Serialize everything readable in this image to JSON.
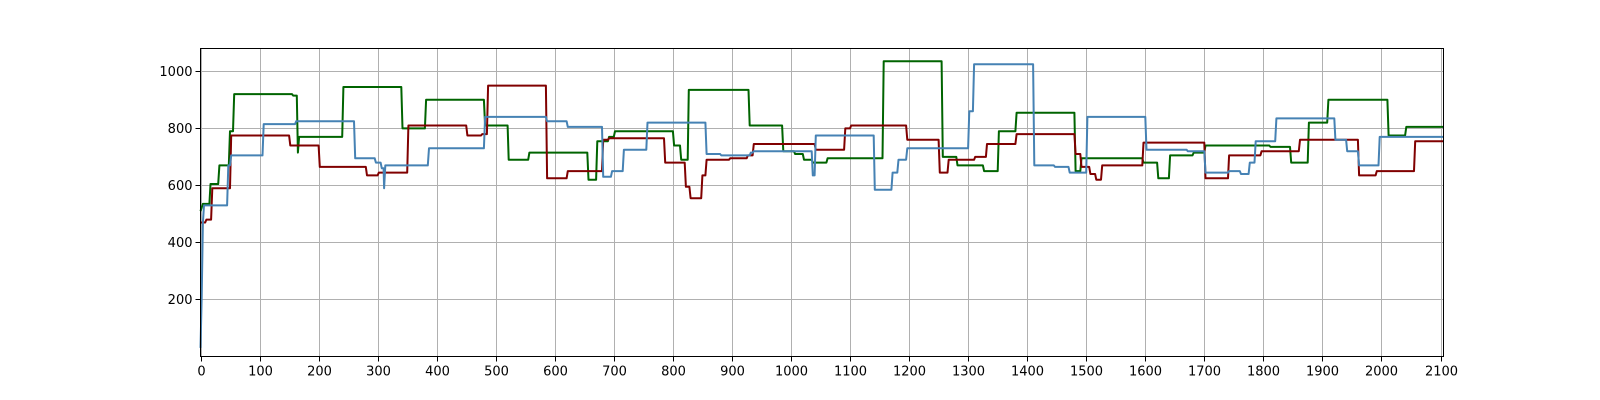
{
  "chart_data": {
    "type": "line",
    "title": "",
    "xlabel": "",
    "ylabel": "",
    "xlim": [
      0,
      2105
    ],
    "ylim": [
      0,
      1080
    ],
    "grid": true,
    "x_ticks": [
      0,
      100,
      200,
      300,
      400,
      500,
      600,
      700,
      800,
      900,
      1000,
      1100,
      1200,
      1300,
      1400,
      1500,
      1600,
      1700,
      1800,
      1900,
      2000,
      2100
    ],
    "y_ticks": [
      200,
      400,
      600,
      800,
      1000
    ],
    "series": [
      {
        "color": "#006400",
        "step": true,
        "points": [
          [
            0,
            510
          ],
          [
            4,
            535
          ],
          [
            15,
            535
          ],
          [
            17,
            605
          ],
          [
            30,
            605
          ],
          [
            32,
            670
          ],
          [
            48,
            670
          ],
          [
            50,
            790
          ],
          [
            55,
            790
          ],
          [
            57,
            920
          ],
          [
            155,
            920
          ],
          [
            157,
            915
          ],
          [
            163,
            915
          ],
          [
            165,
            715
          ],
          [
            167,
            770
          ],
          [
            240,
            770
          ],
          [
            242,
            945
          ],
          [
            340,
            945
          ],
          [
            342,
            800
          ],
          [
            380,
            800
          ],
          [
            382,
            900
          ],
          [
            480,
            900
          ],
          [
            482,
            810
          ],
          [
            520,
            810
          ],
          [
            522,
            690
          ],
          [
            555,
            690
          ],
          [
            557,
            715
          ],
          [
            655,
            715
          ],
          [
            657,
            620
          ],
          [
            670,
            620
          ],
          [
            672,
            755
          ],
          [
            690,
            755
          ],
          [
            692,
            770
          ],
          [
            700,
            770
          ],
          [
            702,
            790
          ],
          [
            800,
            790
          ],
          [
            802,
            740
          ],
          [
            812,
            740
          ],
          [
            814,
            690
          ],
          [
            825,
            690
          ],
          [
            827,
            935
          ],
          [
            928,
            935
          ],
          [
            930,
            810
          ],
          [
            985,
            810
          ],
          [
            987,
            720
          ],
          [
            1005,
            720
          ],
          [
            1007,
            710
          ],
          [
            1020,
            710
          ],
          [
            1022,
            690
          ],
          [
            1035,
            690
          ],
          [
            1037,
            680
          ],
          [
            1060,
            680
          ],
          [
            1062,
            695
          ],
          [
            1155,
            695
          ],
          [
            1157,
            1035
          ],
          [
            1255,
            1035
          ],
          [
            1257,
            700
          ],
          [
            1280,
            700
          ],
          [
            1282,
            670
          ],
          [
            1325,
            670
          ],
          [
            1327,
            650
          ],
          [
            1350,
            650
          ],
          [
            1352,
            790
          ],
          [
            1380,
            790
          ],
          [
            1382,
            855
          ],
          [
            1480,
            855
          ],
          [
            1482,
            650
          ],
          [
            1490,
            650
          ],
          [
            1492,
            695
          ],
          [
            1595,
            695
          ],
          [
            1597,
            680
          ],
          [
            1620,
            680
          ],
          [
            1622,
            625
          ],
          [
            1640,
            625
          ],
          [
            1642,
            705
          ],
          [
            1680,
            705
          ],
          [
            1682,
            715
          ],
          [
            1700,
            715
          ],
          [
            1702,
            740
          ],
          [
            1810,
            740
          ],
          [
            1812,
            735
          ],
          [
            1845,
            735
          ],
          [
            1847,
            680
          ],
          [
            1875,
            680
          ],
          [
            1877,
            820
          ],
          [
            1908,
            820
          ],
          [
            1910,
            900
          ],
          [
            2010,
            900
          ],
          [
            2012,
            775
          ],
          [
            2040,
            775
          ],
          [
            2042,
            805
          ],
          [
            2105,
            805
          ]
        ]
      },
      {
        "color": "#800000",
        "step": true,
        "points": [
          [
            0,
            470
          ],
          [
            8,
            470
          ],
          [
            10,
            480
          ],
          [
            18,
            480
          ],
          [
            20,
            590
          ],
          [
            50,
            590
          ],
          [
            52,
            775
          ],
          [
            105,
            775
          ],
          [
            107,
            775
          ],
          [
            150,
            775
          ],
          [
            152,
            740
          ],
          [
            200,
            740
          ],
          [
            202,
            665
          ],
          [
            280,
            665
          ],
          [
            282,
            635
          ],
          [
            300,
            635
          ],
          [
            302,
            645
          ],
          [
            350,
            645
          ],
          [
            352,
            810
          ],
          [
            450,
            810
          ],
          [
            452,
            775
          ],
          [
            475,
            775
          ],
          [
            477,
            780
          ],
          [
            485,
            780
          ],
          [
            487,
            950
          ],
          [
            585,
            950
          ],
          [
            587,
            625
          ],
          [
            620,
            625
          ],
          [
            622,
            650
          ],
          [
            680,
            650
          ],
          [
            682,
            760
          ],
          [
            690,
            760
          ],
          [
            692,
            765
          ],
          [
            785,
            765
          ],
          [
            787,
            680
          ],
          [
            820,
            680
          ],
          [
            822,
            595
          ],
          [
            828,
            595
          ],
          [
            830,
            555
          ],
          [
            848,
            555
          ],
          [
            850,
            635
          ],
          [
            855,
            635
          ],
          [
            857,
            690
          ],
          [
            895,
            690
          ],
          [
            897,
            695
          ],
          [
            925,
            695
          ],
          [
            927,
            705
          ],
          [
            935,
            705
          ],
          [
            937,
            745
          ],
          [
            1040,
            745
          ],
          [
            1042,
            725
          ],
          [
            1090,
            725
          ],
          [
            1092,
            800
          ],
          [
            1100,
            800
          ],
          [
            1102,
            810
          ],
          [
            1195,
            810
          ],
          [
            1197,
            760
          ],
          [
            1250,
            760
          ],
          [
            1252,
            645
          ],
          [
            1265,
            645
          ],
          [
            1267,
            690
          ],
          [
            1280,
            690
          ],
          [
            1282,
            690
          ],
          [
            1310,
            690
          ],
          [
            1312,
            700
          ],
          [
            1330,
            700
          ],
          [
            1332,
            745
          ],
          [
            1380,
            745
          ],
          [
            1382,
            780
          ],
          [
            1480,
            780
          ],
          [
            1482,
            710
          ],
          [
            1490,
            710
          ],
          [
            1492,
            665
          ],
          [
            1505,
            665
          ],
          [
            1507,
            640
          ],
          [
            1515,
            640
          ],
          [
            1517,
            620
          ],
          [
            1525,
            620
          ],
          [
            1527,
            670
          ],
          [
            1595,
            670
          ],
          [
            1597,
            750
          ],
          [
            1700,
            750
          ],
          [
            1702,
            625
          ],
          [
            1740,
            625
          ],
          [
            1742,
            705
          ],
          [
            1795,
            705
          ],
          [
            1797,
            720
          ],
          [
            1860,
            720
          ],
          [
            1862,
            760
          ],
          [
            1960,
            760
          ],
          [
            1962,
            635
          ],
          [
            1990,
            635
          ],
          [
            1992,
            650
          ],
          [
            2055,
            650
          ],
          [
            2057,
            755
          ],
          [
            2105,
            755
          ]
        ]
      },
      {
        "color": "#4682b4",
        "step": true,
        "points": [
          [
            0,
            30
          ],
          [
            2,
            210
          ],
          [
            4,
            470
          ],
          [
            6,
            530
          ],
          [
            45,
            530
          ],
          [
            47,
            670
          ],
          [
            50,
            670
          ],
          [
            52,
            705
          ],
          [
            105,
            705
          ],
          [
            107,
            815
          ],
          [
            160,
            815
          ],
          [
            162,
            825
          ],
          [
            260,
            825
          ],
          [
            262,
            695
          ],
          [
            295,
            695
          ],
          [
            297,
            680
          ],
          [
            305,
            680
          ],
          [
            307,
            660
          ],
          [
            310,
            660
          ],
          [
            311,
            590
          ],
          [
            313,
            670
          ],
          [
            385,
            670
          ],
          [
            387,
            730
          ],
          [
            480,
            730
          ],
          [
            482,
            840
          ],
          [
            585,
            840
          ],
          [
            587,
            825
          ],
          [
            620,
            825
          ],
          [
            622,
            805
          ],
          [
            680,
            805
          ],
          [
            682,
            630
          ],
          [
            695,
            630
          ],
          [
            697,
            650
          ],
          [
            715,
            650
          ],
          [
            717,
            725
          ],
          [
            755,
            725
          ],
          [
            757,
            820
          ],
          [
            855,
            820
          ],
          [
            857,
            710
          ],
          [
            880,
            710
          ],
          [
            882,
            705
          ],
          [
            930,
            705
          ],
          [
            932,
            715
          ],
          [
            935,
            715
          ],
          [
            937,
            720
          ],
          [
            1035,
            720
          ],
          [
            1037,
            635
          ],
          [
            1040,
            635
          ],
          [
            1042,
            775
          ],
          [
            1140,
            775
          ],
          [
            1142,
            585
          ],
          [
            1170,
            585
          ],
          [
            1172,
            645
          ],
          [
            1180,
            645
          ],
          [
            1182,
            690
          ],
          [
            1195,
            690
          ],
          [
            1197,
            730
          ],
          [
            1300,
            730
          ],
          [
            1302,
            860
          ],
          [
            1308,
            860
          ],
          [
            1310,
            1025
          ],
          [
            1410,
            1025
          ],
          [
            1412,
            670
          ],
          [
            1445,
            670
          ],
          [
            1447,
            665
          ],
          [
            1470,
            665
          ],
          [
            1472,
            645
          ],
          [
            1500,
            645
          ],
          [
            1502,
            840
          ],
          [
            1600,
            840
          ],
          [
            1602,
            725
          ],
          [
            1670,
            725
          ],
          [
            1672,
            720
          ],
          [
            1700,
            720
          ],
          [
            1702,
            645
          ],
          [
            1740,
            645
          ],
          [
            1742,
            650
          ],
          [
            1760,
            650
          ],
          [
            1762,
            640
          ],
          [
            1775,
            640
          ],
          [
            1777,
            680
          ],
          [
            1785,
            680
          ],
          [
            1787,
            755
          ],
          [
            1820,
            755
          ],
          [
            1822,
            835
          ],
          [
            1920,
            835
          ],
          [
            1922,
            760
          ],
          [
            1940,
            760
          ],
          [
            1942,
            720
          ],
          [
            1960,
            720
          ],
          [
            1962,
            670
          ],
          [
            1995,
            670
          ],
          [
            1997,
            770
          ],
          [
            2105,
            770
          ]
        ]
      }
    ]
  }
}
